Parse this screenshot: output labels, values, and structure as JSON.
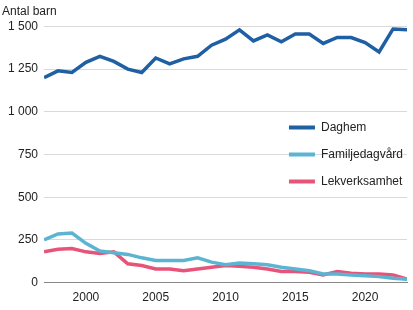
{
  "chart_data": {
    "type": "line",
    "y_label": "Antal barn",
    "x": [
      1997,
      1998,
      1999,
      2000,
      2001,
      2002,
      2003,
      2004,
      2005,
      2006,
      2007,
      2008,
      2009,
      2010,
      2011,
      2012,
      2013,
      2014,
      2015,
      2016,
      2017,
      2018,
      2019,
      2020,
      2021,
      2022,
      2023
    ],
    "series": [
      {
        "name": "Daghem",
        "color": "#1f5fa3",
        "values": [
          1200,
          1240,
          1230,
          1290,
          1325,
          1295,
          1250,
          1230,
          1315,
          1280,
          1310,
          1325,
          1390,
          1425,
          1480,
          1415,
          1450,
          1410,
          1455,
          1455,
          1400,
          1435,
          1435,
          1405,
          1350,
          1485,
          1480
        ]
      },
      {
        "name": "Familjedagvård",
        "color": "#5ab4d2",
        "values": [
          250,
          285,
          290,
          230,
          185,
          175,
          165,
          145,
          130,
          130,
          130,
          145,
          120,
          105,
          115,
          110,
          105,
          90,
          80,
          70,
          50,
          50,
          45,
          40,
          35,
          25,
          20
        ]
      },
      {
        "name": "Lekverksamhet",
        "color": "#e8537a",
        "values": [
          180,
          195,
          200,
          180,
          170,
          180,
          110,
          100,
          80,
          80,
          70,
          80,
          90,
          100,
          95,
          90,
          80,
          65,
          65,
          60,
          45,
          65,
          55,
          50,
          50,
          45,
          20
        ]
      }
    ],
    "xlim": [
      1997,
      2023
    ],
    "xticks": [
      2000,
      2005,
      2010,
      2015,
      2020
    ],
    "ylim": [
      0,
      1500
    ],
    "yticks": [
      0,
      250,
      500,
      750,
      {
        "value": 1000,
        "label": "1 000"
      },
      {
        "value": 1250,
        "label": "1 250"
      },
      {
        "value": 1500,
        "label": "1 500"
      }
    ],
    "grid": true,
    "legend": "right"
  }
}
